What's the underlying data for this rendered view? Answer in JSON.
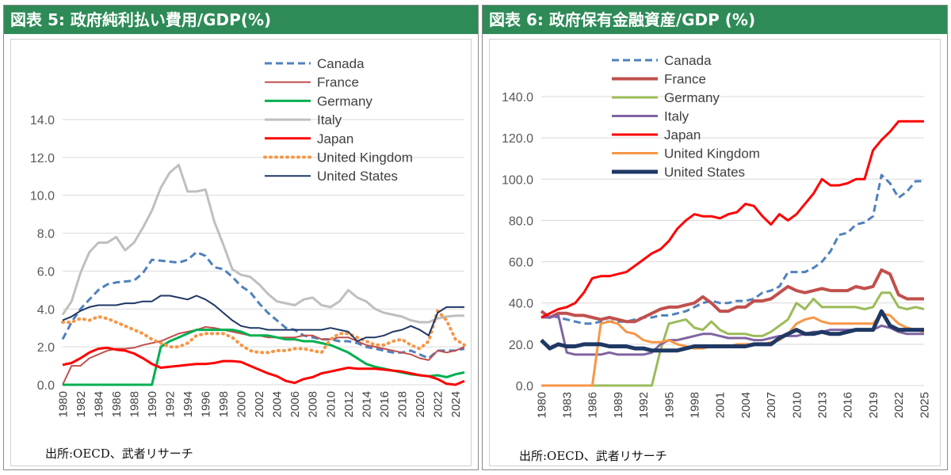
{
  "panels": {
    "left_title": "図表 5: 政府純利払い費用/GDP(%)",
    "right_title": "図表 6: 政府保有金融資産/GDP (%)",
    "left_source": "出所:OECD、武者リサーチ",
    "right_source": "出所:OECD、武者リサーチ"
  },
  "chart_data": [
    {
      "type": "line",
      "title": "図表 5: 政府純利払い費用/GDP(%)",
      "xlabel": "",
      "ylabel": "",
      "ylim": [
        0,
        14
      ],
      "yticks": [
        "0.0",
        "2.0",
        "4.0",
        "6.0",
        "8.0",
        "10.0",
        "12.0",
        "14.0"
      ],
      "x": [
        1980,
        1981,
        1982,
        1983,
        1984,
        1985,
        1986,
        1987,
        1988,
        1989,
        1990,
        1991,
        1992,
        1993,
        1994,
        1995,
        1996,
        1997,
        1998,
        1999,
        2000,
        2001,
        2002,
        2003,
        2004,
        2005,
        2006,
        2007,
        2008,
        2009,
        2010,
        2011,
        2012,
        2013,
        2014,
        2015,
        2016,
        2017,
        2018,
        2019,
        2020,
        2021,
        2022,
        2023,
        2024,
        2025
      ],
      "xticks": [
        "1980",
        "1982",
        "1984",
        "1986",
        "1988",
        "1990",
        "1992",
        "1994",
        "1996",
        "1998",
        "2000",
        "2002",
        "2004",
        "2006",
        "2008",
        "2010",
        "2012",
        "2014",
        "2016",
        "2018",
        "2020",
        "2022",
        "2024"
      ],
      "legend_position": "top-center",
      "series": [
        {
          "name": "Canada",
          "color": "#4f81bd",
          "style": "dashed",
          "width": 3,
          "values": [
            2.4,
            3.3,
            4.0,
            4.5,
            5.0,
            5.3,
            5.4,
            5.45,
            5.5,
            5.9,
            6.6,
            6.55,
            6.5,
            6.45,
            6.6,
            7.0,
            6.8,
            6.2,
            6.1,
            5.7,
            5.2,
            4.9,
            4.3,
            3.8,
            3.4,
            3.0,
            2.9,
            2.6,
            2.5,
            2.4,
            2.4,
            2.3,
            2.3,
            2.2,
            2.0,
            1.9,
            1.8,
            1.7,
            1.7,
            1.8,
            1.6,
            1.4,
            1.8,
            1.8,
            1.8,
            1.9
          ]
        },
        {
          "name": "France",
          "color": "#c0504d",
          "style": "solid",
          "width": 2,
          "values": [
            0.0,
            1.0,
            1.0,
            1.4,
            1.6,
            1.8,
            1.9,
            1.9,
            1.95,
            2.1,
            2.2,
            2.3,
            2.5,
            2.7,
            2.8,
            2.9,
            3.05,
            3.0,
            2.9,
            2.8,
            2.7,
            2.6,
            2.6,
            2.5,
            2.5,
            2.5,
            2.5,
            2.6,
            2.6,
            2.4,
            2.4,
            2.5,
            2.5,
            2.3,
            2.1,
            2.0,
            1.9,
            1.8,
            1.7,
            1.6,
            1.4,
            1.3,
            1.8,
            1.7,
            1.8,
            2.0
          ]
        },
        {
          "name": "Germany",
          "color": "#00b050",
          "style": "solid",
          "width": 3,
          "values": [
            0.0,
            0.0,
            0.0,
            0.0,
            0.0,
            0.0,
            0.0,
            0.0,
            0.0,
            0.0,
            0.0,
            2.0,
            2.3,
            2.5,
            2.7,
            2.9,
            2.9,
            2.9,
            2.9,
            2.9,
            2.8,
            2.6,
            2.6,
            2.6,
            2.5,
            2.4,
            2.4,
            2.3,
            2.3,
            2.2,
            2.1,
            1.9,
            1.7,
            1.4,
            1.1,
            0.95,
            0.85,
            0.75,
            0.65,
            0.55,
            0.5,
            0.45,
            0.5,
            0.4,
            0.55,
            0.65
          ]
        },
        {
          "name": "Italy",
          "color": "#bfbfbf",
          "style": "solid",
          "width": 3,
          "values": [
            3.7,
            4.4,
            5.9,
            7.0,
            7.5,
            7.5,
            7.8,
            7.1,
            7.5,
            8.3,
            9.2,
            10.4,
            11.2,
            11.6,
            10.2,
            10.2,
            10.3,
            8.6,
            7.4,
            6.1,
            5.8,
            5.7,
            5.3,
            4.8,
            4.4,
            4.3,
            4.2,
            4.5,
            4.6,
            4.2,
            4.1,
            4.4,
            5.0,
            4.6,
            4.4,
            4.0,
            3.8,
            3.7,
            3.6,
            3.4,
            3.3,
            3.3,
            3.5,
            3.6,
            3.65,
            3.65
          ]
        },
        {
          "name": "Japan",
          "color": "#ff0000",
          "style": "solid",
          "width": 3,
          "values": [
            1.05,
            1.15,
            1.4,
            1.7,
            1.9,
            1.95,
            1.85,
            1.8,
            1.65,
            1.4,
            1.1,
            0.9,
            0.95,
            1.0,
            1.05,
            1.1,
            1.1,
            1.15,
            1.25,
            1.25,
            1.2,
            1.0,
            0.8,
            0.6,
            0.45,
            0.2,
            0.1,
            0.3,
            0.4,
            0.6,
            0.7,
            0.8,
            0.9,
            0.85,
            0.85,
            0.85,
            0.8,
            0.75,
            0.7,
            0.6,
            0.5,
            0.45,
            0.3,
            0.05,
            0.0,
            0.2
          ]
        },
        {
          "name": "United Kingdom",
          "color": "#f79646",
          "style": "dotted",
          "width": 4,
          "values": [
            3.3,
            3.3,
            3.5,
            3.4,
            3.6,
            3.5,
            3.3,
            3.1,
            2.9,
            2.7,
            2.4,
            2.2,
            2.0,
            2.0,
            2.2,
            2.6,
            2.7,
            2.7,
            2.7,
            2.5,
            2.1,
            1.8,
            1.7,
            1.7,
            1.8,
            1.8,
            1.9,
            1.9,
            1.8,
            1.7,
            2.4,
            2.7,
            2.7,
            2.5,
            2.3,
            2.1,
            2.1,
            2.3,
            2.4,
            2.1,
            1.9,
            2.3,
            3.9,
            3.4,
            2.4,
            2.1
          ]
        },
        {
          "name": "United States",
          "color": "#1f3864",
          "style": "solid",
          "width": 2,
          "values": [
            3.4,
            3.6,
            3.9,
            4.1,
            4.2,
            4.2,
            4.2,
            4.3,
            4.3,
            4.4,
            4.4,
            4.7,
            4.7,
            4.6,
            4.5,
            4.7,
            4.5,
            4.2,
            3.8,
            3.4,
            3.1,
            3.0,
            3.0,
            2.9,
            2.9,
            2.9,
            2.9,
            2.9,
            2.9,
            2.9,
            3.0,
            2.9,
            2.8,
            2.3,
            2.5,
            2.5,
            2.6,
            2.8,
            2.9,
            3.1,
            2.9,
            2.6,
            3.8,
            4.1,
            4.1,
            4.1
          ]
        }
      ]
    },
    {
      "type": "line",
      "title": "図表 6: 政府保有金融資産/GDP (%)",
      "xlabel": "",
      "ylabel": "",
      "ylim": [
        0,
        140
      ],
      "yticks": [
        "0.0",
        "20.0",
        "40.0",
        "60.0",
        "80.0",
        "100.0",
        "120.0",
        "140.0"
      ],
      "x": [
        1980,
        1981,
        1982,
        1983,
        1984,
        1985,
        1986,
        1987,
        1988,
        1989,
        1990,
        1991,
        1992,
        1993,
        1994,
        1995,
        1996,
        1997,
        1998,
        1999,
        2000,
        2001,
        2002,
        2003,
        2004,
        2005,
        2006,
        2007,
        2008,
        2009,
        2010,
        2011,
        2012,
        2013,
        2014,
        2015,
        2016,
        2017,
        2018,
        2019,
        2020,
        2021,
        2022,
        2023,
        2024,
        2025
      ],
      "xticks": [
        "1980",
        "1983",
        "1986",
        "1989",
        "1992",
        "1995",
        "1998",
        "2001",
        "2004",
        "2007",
        "2010",
        "2013",
        "2016",
        "2019",
        "2022",
        "2025"
      ],
      "legend_position": "top-center",
      "series": [
        {
          "name": "Canada",
          "color": "#4f81bd",
          "style": "dashed",
          "width": 3,
          "values": [
            33,
            34,
            33,
            32,
            31,
            30,
            30,
            31,
            31,
            31,
            31,
            32,
            33,
            33,
            34,
            34,
            35,
            36,
            38,
            40,
            41,
            40,
            40,
            41,
            41,
            42,
            45,
            46,
            48,
            55,
            55,
            55,
            57,
            60,
            65,
            73,
            74,
            78,
            79,
            82,
            102,
            98,
            91,
            94,
            99,
            99
          ]
        },
        {
          "name": "France",
          "color": "#c0504d",
          "style": "solid",
          "width": 4,
          "values": [
            36,
            33,
            35,
            35,
            34,
            34,
            33,
            32,
            33,
            32,
            31,
            31,
            33,
            35,
            37,
            38,
            38,
            39,
            40,
            43,
            40,
            36,
            36,
            38,
            38,
            41,
            41,
            42,
            45,
            48,
            46,
            45,
            46,
            47,
            46,
            46,
            46,
            48,
            47,
            48,
            56,
            54,
            44,
            42,
            42,
            42
          ]
        },
        {
          "name": "Germany",
          "color": "#9bbb59",
          "style": "solid",
          "width": 3,
          "values": [
            0,
            0,
            0,
            0,
            0,
            0,
            0,
            0,
            0,
            0,
            0,
            0,
            0,
            0,
            17,
            30,
            31,
            32,
            28,
            27,
            31,
            27,
            25,
            25,
            25,
            24,
            24,
            26,
            29,
            32,
            40,
            37,
            42,
            38,
            38,
            38,
            38,
            38,
            37,
            38,
            45,
            45,
            38,
            37,
            38,
            37
          ]
        },
        {
          "name": "Italy",
          "color": "#8064a2",
          "style": "solid",
          "width": 3,
          "values": [
            33,
            33,
            34,
            16,
            15,
            15,
            15,
            15,
            16,
            15,
            15,
            15,
            15,
            16,
            20,
            22,
            22,
            23,
            24,
            25,
            25,
            24,
            23,
            23,
            23,
            22,
            22,
            23,
            24,
            24,
            24,
            25,
            26,
            26,
            27,
            27,
            27,
            27,
            27,
            27,
            29,
            28,
            26,
            25,
            25,
            25
          ]
        },
        {
          "name": "Japan",
          "color": "#ff0000",
          "style": "solid",
          "width": 3,
          "values": [
            33,
            35,
            37,
            38,
            40,
            45,
            52,
            53,
            53,
            54,
            55,
            58,
            61,
            64,
            66,
            70,
            76,
            80,
            83,
            82,
            82,
            81,
            83,
            84,
            88,
            87,
            82,
            78,
            83,
            80,
            83,
            88,
            93,
            100,
            97,
            97,
            98,
            100,
            100,
            114,
            119,
            123,
            128,
            128,
            128,
            128
          ]
        },
        {
          "name": "United Kingdom",
          "color": "#f79646",
          "style": "solid",
          "width": 3,
          "values": [
            0,
            0,
            0,
            0,
            0,
            0,
            0,
            30,
            31,
            30,
            26,
            25,
            22,
            21,
            21,
            22,
            20,
            19,
            18,
            18,
            19,
            19,
            19,
            20,
            20,
            20,
            20,
            21,
            22,
            25,
            30,
            32,
            33,
            31,
            30,
            30,
            30,
            30,
            30,
            30,
            35,
            34,
            30,
            28,
            27,
            26
          ]
        },
        {
          "name": "United States",
          "color": "#1f3864",
          "style": "solid",
          "width": 5,
          "values": [
            22,
            18,
            20,
            19,
            19,
            20,
            20,
            20,
            19,
            19,
            19,
            18,
            18,
            17,
            17,
            17,
            17,
            18,
            19,
            19,
            19,
            19,
            19,
            19,
            19,
            20,
            20,
            20,
            23,
            25,
            27,
            25,
            25,
            26,
            25,
            25,
            26,
            27,
            27,
            27,
            36,
            29,
            27,
            27,
            27,
            27
          ]
        }
      ]
    }
  ]
}
